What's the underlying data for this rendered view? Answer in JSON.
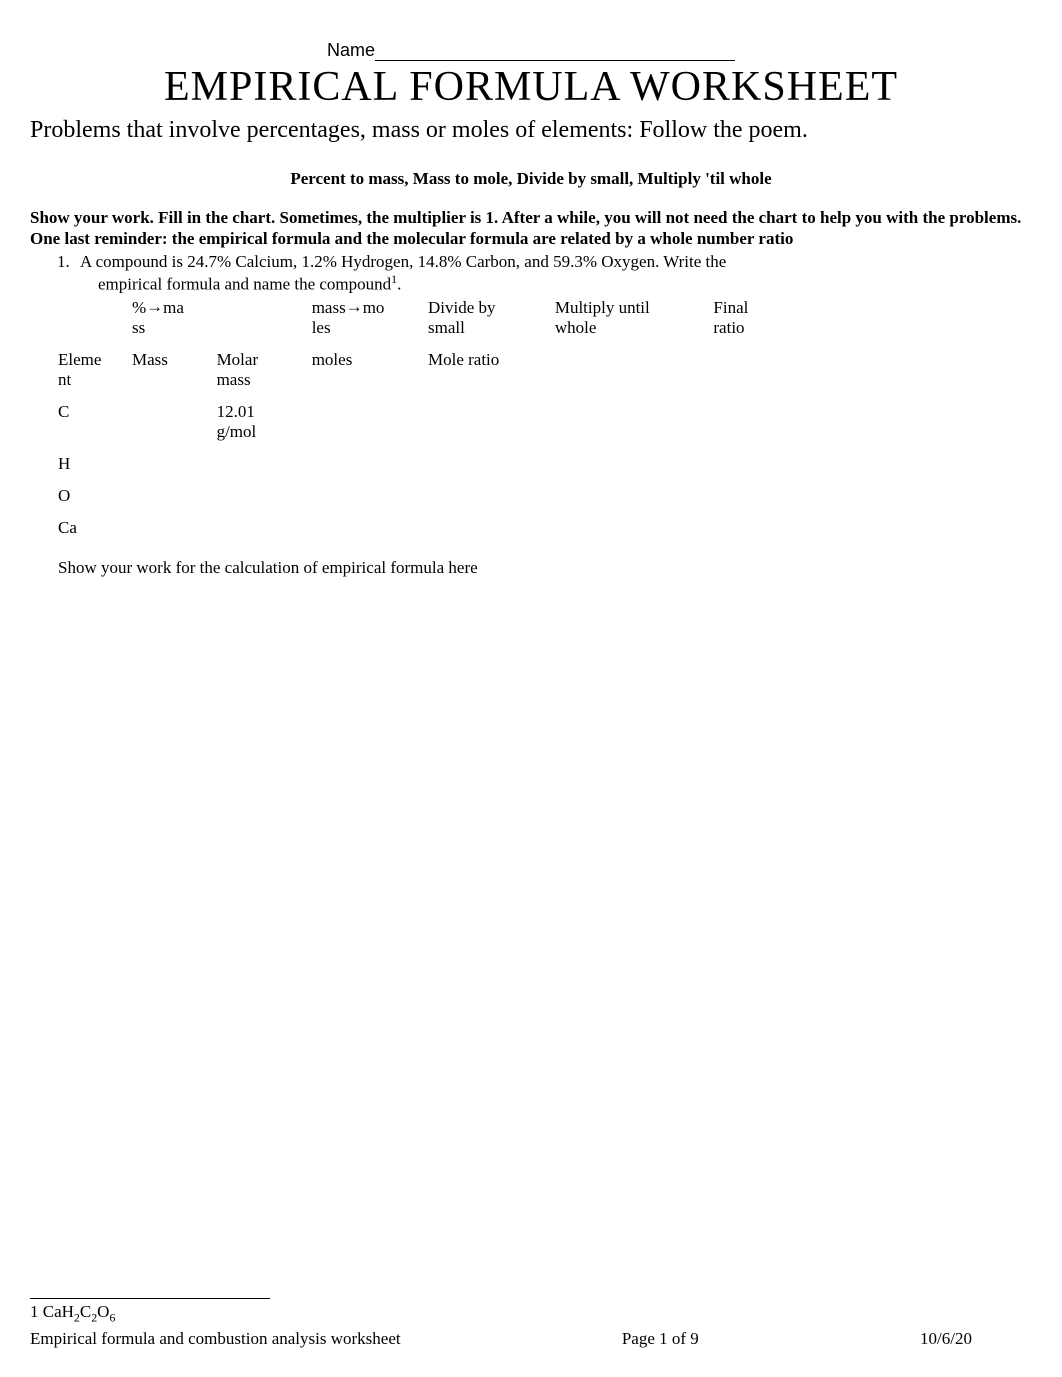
{
  "header": {
    "name_label": "Name"
  },
  "title": "EMPIRICAL FORMULA WORKSHEET",
  "subtitle": "Problems that involve percentages, mass or moles of elements: Follow the poem.",
  "poem": "Percent to mass, Mass to mole, Divide by small, Multiply 'til whole",
  "instructions": "Show your work. Fill in the chart.  Sometimes, the multiplier is 1.  After a while, you will not need the chart to help you with the problems.  One last reminder: the empirical formula and the molecular formula are related by a whole number ratio",
  "problem1": {
    "number": "1.",
    "text": "A compound is 24.7% Calcium, 1.2% Hydrogen, 14.8% Carbon, and 59.3% Oxygen. Write the",
    "text2_prefix": "empirical formula and name the compound",
    "sup": "1",
    "text2_suffix": "."
  },
  "chart": {
    "header1": {
      "c1_a": "%",
      "c1_b": "ma",
      "c1_c": "ss",
      "c3_a": "mass",
      "c3_b": "mo",
      "c3_c": "les",
      "c4_a": "Divide by",
      "c4_b": "small",
      "c5_a": "Multiply until",
      "c5_b": "whole",
      "c6_a": "Final",
      "c6_b": "ratio"
    },
    "header2": {
      "c0_a": "Eleme",
      "c0_b": "nt",
      "c1": "Mass",
      "c2_a": "Molar",
      "c2_b": "mass",
      "c3": "moles",
      "c4": "Mole ratio"
    },
    "rows": [
      {
        "element": "C",
        "molar_mass_a": "12.01",
        "molar_mass_b": "g/mol"
      },
      {
        "element": "H",
        "molar_mass_a": "",
        "molar_mass_b": ""
      },
      {
        "element": "O",
        "molar_mass_a": "",
        "molar_mass_b": ""
      },
      {
        "element": "Ca",
        "molar_mass_a": "",
        "molar_mass_b": ""
      }
    ]
  },
  "show_work_label": "Show your work for the calculation of empirical formula here",
  "footnote": {
    "num": "1",
    "prefix": " CaH",
    "sub1": "2",
    "mid": "C",
    "sub2": "2",
    "mid2": "O",
    "sub3": "6"
  },
  "footer": {
    "left": "Empirical formula and combustion analysis worksheet",
    "center": "Page 1 of 9",
    "right": "10/6/20"
  },
  "arrow_glyph": "→"
}
